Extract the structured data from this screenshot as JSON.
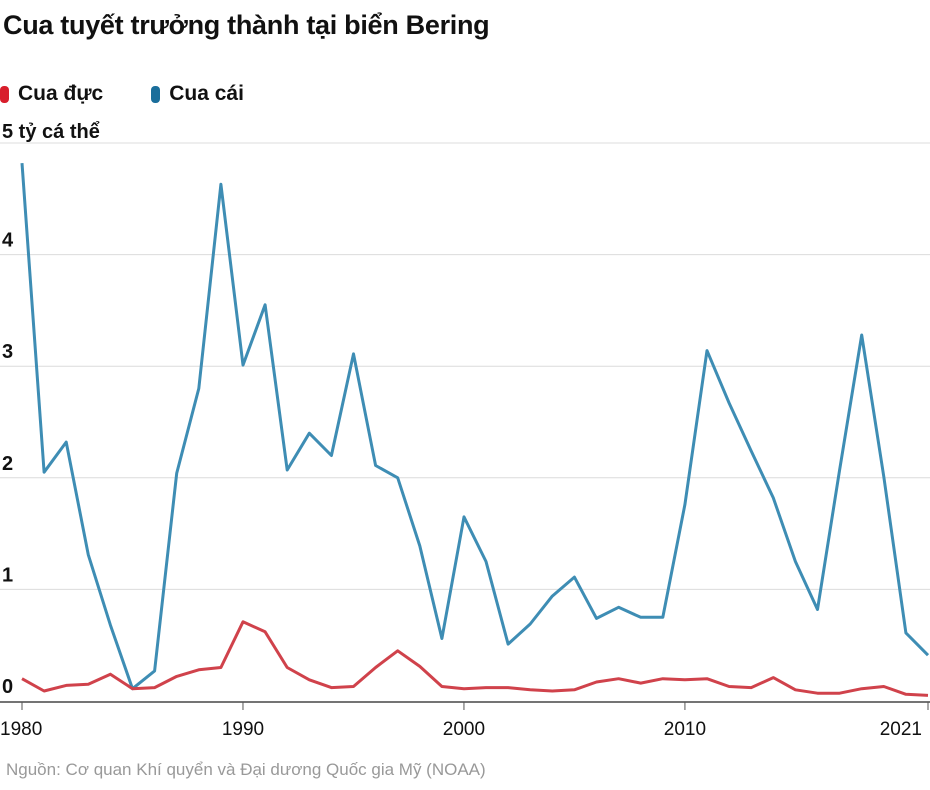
{
  "chart_data": {
    "type": "line",
    "title": "Cua tuyết trưởng thành tại biển Bering",
    "ylabel_unit": "tỷ cá thể",
    "ylim": [
      0,
      5
    ],
    "xlim": [
      1980,
      2021
    ],
    "yticks": [
      0,
      1,
      2,
      3,
      4,
      5
    ],
    "xticks": [
      1980,
      1990,
      2000,
      2010,
      2021
    ],
    "grid": true,
    "legend_placement": "top-left",
    "x": [
      1980,
      1981,
      1982,
      1983,
      1984,
      1985,
      1986,
      1987,
      1988,
      1989,
      1990,
      1991,
      1992,
      1993,
      1994,
      1995,
      1996,
      1997,
      1998,
      1999,
      2000,
      2001,
      2002,
      2003,
      2004,
      2005,
      2006,
      2007,
      2008,
      2009,
      2010,
      2011,
      2012,
      2013,
      2014,
      2015,
      2016,
      2017,
      2018,
      2019,
      2020,
      2021
    ],
    "series": [
      {
        "name": "Cua đực",
        "color": "#d0424b",
        "values": [
          0.2,
          0.09,
          0.14,
          0.15,
          0.24,
          0.11,
          0.12,
          0.22,
          0.28,
          0.3,
          0.71,
          0.62,
          0.3,
          0.19,
          0.12,
          0.13,
          0.3,
          0.45,
          0.31,
          0.13,
          0.11,
          0.12,
          0.12,
          0.1,
          0.09,
          0.1,
          0.17,
          0.2,
          0.16,
          0.2,
          0.19,
          0.2,
          0.13,
          0.12,
          0.21,
          0.1,
          0.07,
          0.07,
          0.11,
          0.13,
          0.06,
          0.05
        ]
      },
      {
        "name": "Cua cái",
        "color": "#3e8db4",
        "values": [
          4.82,
          2.05,
          2.32,
          1.31,
          0.68,
          0.11,
          0.27,
          2.04,
          2.8,
          4.63,
          3.01,
          3.55,
          2.07,
          2.4,
          2.2,
          3.11,
          2.11,
          2.0,
          1.39,
          0.56,
          1.65,
          1.25,
          0.51,
          0.69,
          0.94,
          1.11,
          0.74,
          0.84,
          0.75,
          0.75,
          1.76,
          3.14,
          2.67,
          2.24,
          1.82,
          1.25,
          0.82,
          2.07,
          3.28,
          2.01,
          0.61,
          0.41
        ]
      }
    ],
    "legend_colors": {
      "Cua đực": "#d81e2c",
      "Cua cái": "#1a6e9b"
    }
  },
  "source": "Nguồn: Cơ quan Khí quyển và Đại dương Quốc gia Mỹ (NOAA)"
}
